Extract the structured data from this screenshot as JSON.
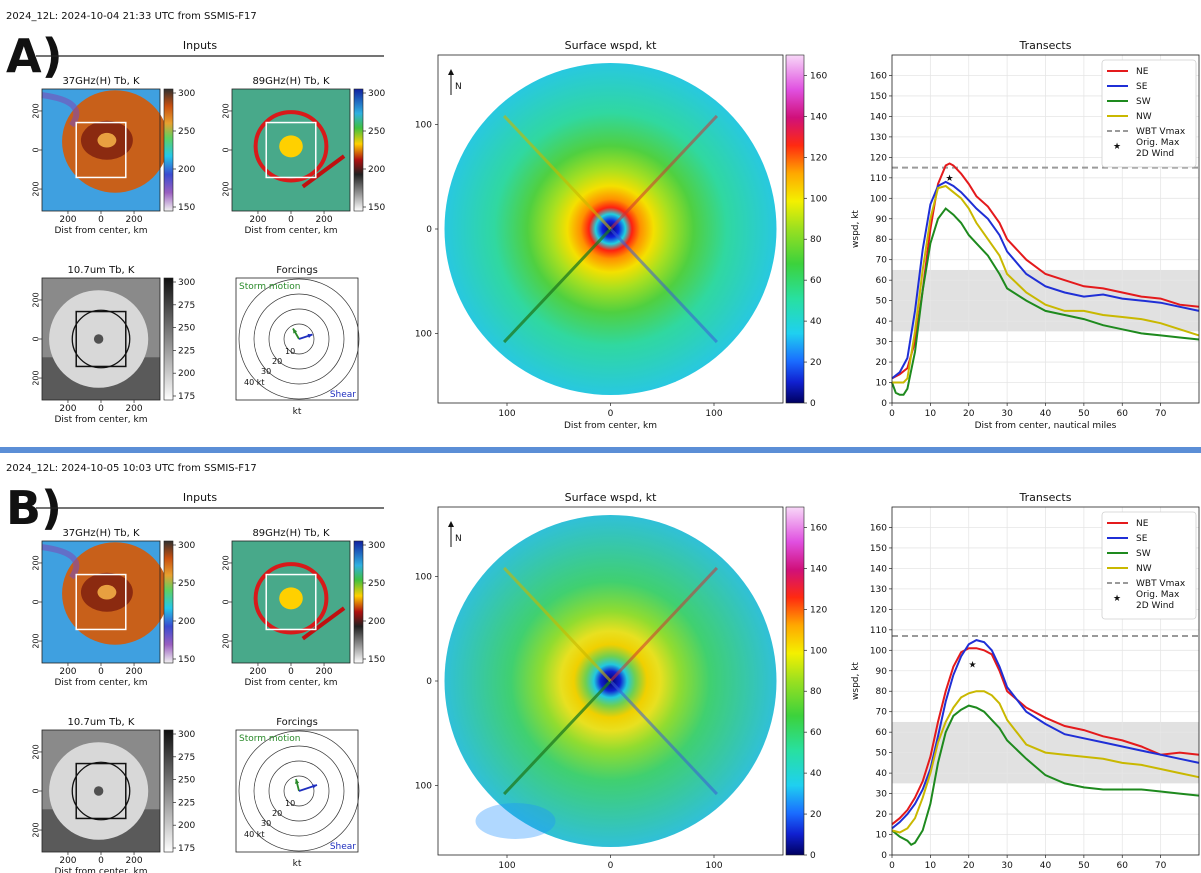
{
  "panels": [
    {
      "letter": "A)",
      "header": "2024_12L: 2024-10-04 21:33 UTC from SSMIS-F17",
      "inputs_title": "Inputs",
      "ch37_title": "37GHz(H) Tb, K",
      "ch89_title": "89GHz(H) Tb, K",
      "ir_title": "10.7um Tb, K",
      "forcings_title": "Forcings",
      "xlabel_km": "Dist from center, km",
      "tick_pm": [
        "200",
        "0",
        "200"
      ],
      "tick_x": [
        "200",
        "0",
        "200"
      ],
      "cb37": [
        "300",
        "250",
        "200",
        "150"
      ],
      "cb89": [
        "300",
        "250",
        "200",
        "150"
      ],
      "cbir": [
        "300",
        "275",
        "250",
        "225",
        "200",
        "175"
      ],
      "forcings": {
        "storm_motion_label": "Storm motion",
        "shear_label": "Shear",
        "ring_labels": [
          "10",
          "20",
          "30",
          "40 kt"
        ],
        "xlabel": "kt",
        "motion_vec": {
          "u": -4,
          "v": 7
        },
        "shear_vec": {
          "u": 9,
          "v": 3
        },
        "motion_color": "#2a8a2a",
        "shear_color": "#1f2fbf"
      },
      "wspd": {
        "title": "Surface wspd, kt",
        "north": "N",
        "yticks": [
          "100",
          "0",
          "100"
        ],
        "xticks": [
          "100",
          "0",
          "100"
        ],
        "xlabel": "Dist from center, km",
        "colorbar_ticks": [
          "0",
          "20",
          "40",
          "60",
          "80",
          "100",
          "120",
          "140",
          "160"
        ],
        "eye_offset": [
          0,
          0
        ]
      },
      "chart_data": {
        "type": "line",
        "title": "Transects",
        "xlabel": "Dist from center, nautical miles",
        "ylabel": "wspd, kt",
        "xlim": [
          0,
          80
        ],
        "ylim": [
          0,
          170
        ],
        "xticks": [
          0,
          10,
          20,
          30,
          40,
          50,
          60,
          70
        ],
        "yticks": [
          0,
          10,
          20,
          30,
          40,
          50,
          60,
          70,
          80,
          90,
          100,
          110,
          120,
          130,
          140,
          150,
          160
        ],
        "grid": true,
        "legend_position": "top-right",
        "hline": {
          "name": "WBT Vmax",
          "y": 115
        },
        "marker": {
          "name": "Orig. Max 2D Wind",
          "x": 15,
          "y": 110
        },
        "band": [
          35,
          65
        ],
        "series": [
          {
            "name": "NE",
            "color": "#e41a1c",
            "x": [
              0,
              2,
              4,
              6,
              8,
              10,
              12,
              14,
              15,
              16,
              18,
              20,
              22,
              25,
              28,
              30,
              35,
              40,
              45,
              50,
              55,
              60,
              65,
              70,
              75,
              80
            ],
            "y": [
              12,
              14,
              17,
              30,
              55,
              85,
              107,
              116,
              117,
              116,
              112,
              107,
              101,
              96,
              88,
              80,
              70,
              63,
              60,
              57,
              56,
              54,
              52,
              51,
              48,
              47
            ]
          },
          {
            "name": "SE",
            "color": "#1f2fd6",
            "x": [
              0,
              2,
              4,
              6,
              8,
              10,
              12,
              14,
              16,
              18,
              20,
              22,
              25,
              28,
              30,
              35,
              40,
              45,
              50,
              55,
              60,
              65,
              70,
              75,
              80
            ],
            "y": [
              12,
              15,
              22,
              45,
              75,
              97,
              106,
              108,
              106,
              103,
              99,
              95,
              90,
              82,
              74,
              63,
              57,
              54,
              52,
              53,
              51,
              50,
              49,
              47,
              45
            ]
          },
          {
            "name": "SW",
            "color": "#1e8a1e",
            "x": [
              0,
              1,
              2,
              3,
              4,
              6,
              8,
              10,
              12,
              14,
              16,
              18,
              20,
              22,
              25,
              28,
              30,
              35,
              40,
              45,
              50,
              55,
              60,
              65,
              70,
              75,
              80
            ],
            "y": [
              10,
              5,
              4,
              4,
              7,
              25,
              55,
              78,
              90,
              95,
              92,
              88,
              82,
              78,
              72,
              63,
              56,
              50,
              45,
              43,
              41,
              38,
              36,
              34,
              33,
              32,
              31
            ]
          },
          {
            "name": "NW",
            "color": "#c9b800",
            "x": [
              0,
              2,
              3,
              4,
              6,
              8,
              10,
              12,
              14,
              16,
              18,
              20,
              22,
              25,
              28,
              30,
              35,
              40,
              45,
              50,
              55,
              60,
              65,
              70,
              75,
              80
            ],
            "y": [
              10,
              10,
              10,
              12,
              35,
              65,
              90,
              105,
              106,
              103,
              100,
              95,
              88,
              80,
              72,
              63,
              54,
              48,
              45,
              45,
              43,
              42,
              41,
              39,
              36,
              33
            ]
          }
        ]
      }
    },
    {
      "letter": "B)",
      "header": "2024_12L: 2024-10-05 10:03 UTC from SSMIS-F17",
      "inputs_title": "Inputs",
      "ch37_title": "37GHz(H) Tb, K",
      "ch89_title": "89GHz(H) Tb, K",
      "ir_title": "10.7um Tb, K",
      "forcings_title": "Forcings",
      "xlabel_km": "Dist from center, km",
      "tick_pm": [
        "200",
        "0",
        "200"
      ],
      "tick_x": [
        "200",
        "0",
        "200"
      ],
      "cb37": [
        "300",
        "250",
        "200",
        "150"
      ],
      "cb89": [
        "300",
        "250",
        "200",
        "150"
      ],
      "cbir": [
        "300",
        "275",
        "250",
        "225",
        "200",
        "175"
      ],
      "forcings": {
        "storm_motion_label": "Storm motion",
        "shear_label": "Shear",
        "ring_labels": [
          "10",
          "20",
          "30",
          "40 kt"
        ],
        "xlabel": "kt",
        "motion_vec": {
          "u": -2,
          "v": 8
        },
        "shear_vec": {
          "u": 12,
          "v": 4
        },
        "motion_color": "#2a8a2a",
        "shear_color": "#1f2fbf"
      },
      "wspd": {
        "title": "Surface wspd, kt",
        "north": "N",
        "yticks": [
          "100",
          "0",
          "100"
        ],
        "xticks": [
          "100",
          "0",
          "100"
        ],
        "xlabel": "Dist from center, km",
        "colorbar_ticks": [
          "0",
          "20",
          "40",
          "60",
          "80",
          "100",
          "120",
          "140",
          "160"
        ],
        "eye_offset": [
          0,
          0
        ]
      },
      "chart_data": {
        "type": "line",
        "title": "Transects",
        "xlabel": "Dist from center, nautical miles",
        "ylabel": "wspd, kt",
        "xlim": [
          0,
          80
        ],
        "ylim": [
          0,
          170
        ],
        "xticks": [
          0,
          10,
          20,
          30,
          40,
          50,
          60,
          70
        ],
        "yticks": [
          0,
          10,
          20,
          30,
          40,
          50,
          60,
          70,
          80,
          90,
          100,
          110,
          120,
          130,
          140,
          150,
          160
        ],
        "grid": true,
        "legend_position": "top-right",
        "hline": {
          "name": "WBT Vmax",
          "y": 107
        },
        "marker": {
          "name": "Orig. Max 2D Wind",
          "x": 21,
          "y": 93
        },
        "band": [
          35,
          65
        ],
        "series": [
          {
            "name": "NE",
            "color": "#e41a1c",
            "x": [
              0,
              2,
              4,
              6,
              8,
              10,
              12,
              14,
              16,
              18,
              20,
              22,
              24,
              26,
              28,
              30,
              35,
              40,
              45,
              50,
              55,
              60,
              65,
              70,
              75,
              80
            ],
            "y": [
              15,
              18,
              22,
              28,
              36,
              48,
              65,
              80,
              92,
              99,
              101,
              101,
              100,
              98,
              90,
              80,
              72,
              67,
              63,
              61,
              58,
              56,
              53,
              49,
              50,
              49
            ]
          },
          {
            "name": "SE",
            "color": "#1f2fd6",
            "x": [
              0,
              2,
              4,
              6,
              8,
              10,
              12,
              14,
              16,
              18,
              20,
              22,
              24,
              26,
              28,
              30,
              35,
              40,
              45,
              50,
              55,
              60,
              65,
              70,
              75,
              80
            ],
            "y": [
              13,
              16,
              20,
              25,
              32,
              42,
              58,
              75,
              88,
              97,
              103,
              105,
              104,
              100,
              92,
              82,
              70,
              64,
              59,
              57,
              55,
              53,
              51,
              49,
              47,
              45
            ]
          },
          {
            "name": "SW",
            "color": "#1e8a1e",
            "x": [
              0,
              2,
              4,
              5,
              6,
              8,
              10,
              12,
              14,
              16,
              18,
              20,
              22,
              24,
              26,
              28,
              30,
              35,
              40,
              45,
              50,
              55,
              60,
              65,
              70,
              75,
              80
            ],
            "y": [
              12,
              9,
              7,
              5,
              6,
              12,
              25,
              45,
              60,
              68,
              71,
              73,
              72,
              70,
              66,
              62,
              56,
              47,
              39,
              35,
              33,
              32,
              32,
              32,
              31,
              30,
              29
            ]
          },
          {
            "name": "NW",
            "color": "#c9b800",
            "x": [
              0,
              2,
              4,
              6,
              8,
              10,
              12,
              14,
              16,
              18,
              20,
              22,
              24,
              26,
              28,
              30,
              35,
              40,
              45,
              50,
              55,
              60,
              65,
              70,
              75,
              80
            ],
            "y": [
              12,
              11,
              13,
              18,
              28,
              40,
              55,
              65,
              72,
              77,
              79,
              80,
              80,
              78,
              74,
              66,
              54,
              50,
              49,
              48,
              47,
              45,
              44,
              42,
              40,
              38
            ]
          }
        ]
      }
    }
  ]
}
